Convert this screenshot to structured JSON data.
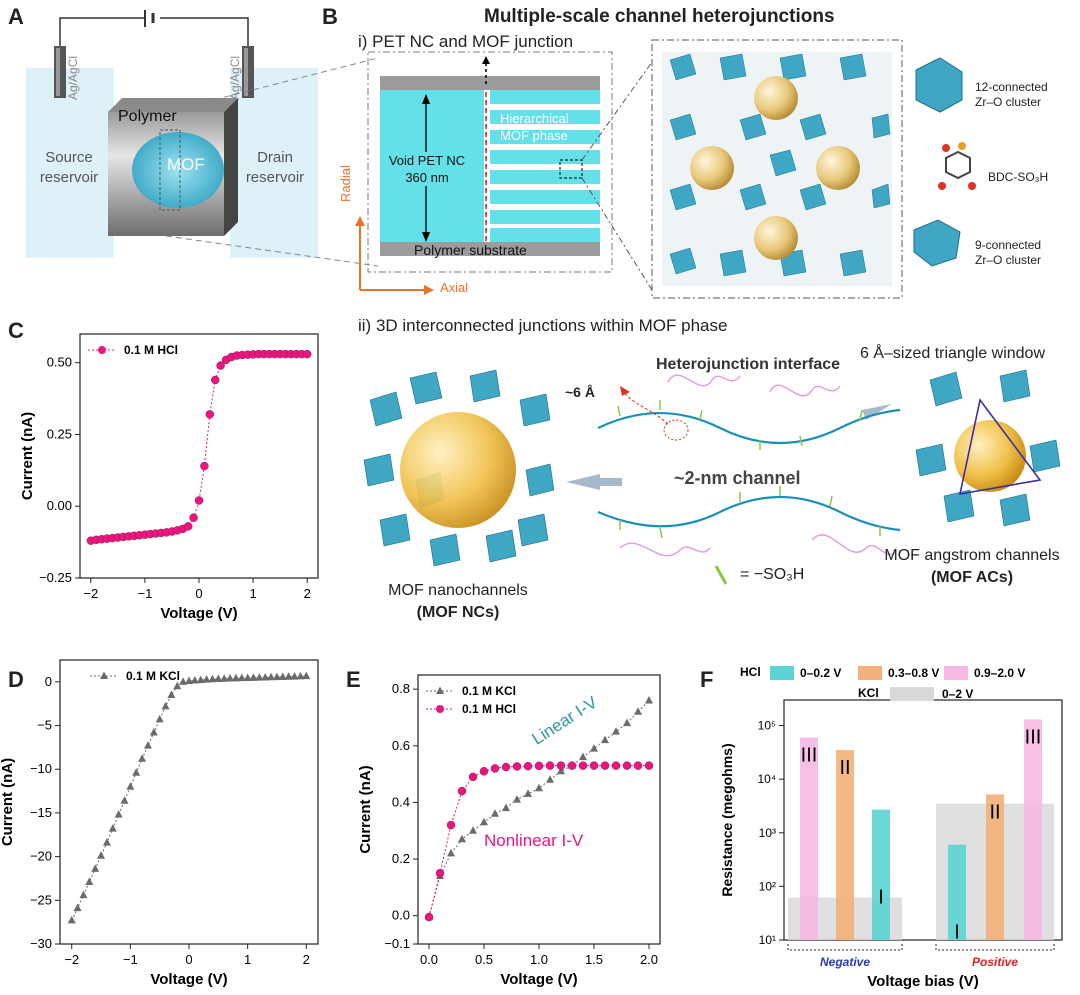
{
  "panel_labels": {
    "A": "A",
    "B": "B",
    "C": "C",
    "D": "D",
    "E": "E",
    "F": "F"
  },
  "panel_A": {
    "electrode_left": "Ag/AgCl",
    "electrode_right": "Ag/AgCl",
    "polymer": "Polymer",
    "mof": "MOF",
    "source_line1": "Source",
    "source_line2": "reservoir",
    "drain_line1": "Drain",
    "drain_line2": "reservoir"
  },
  "panel_B": {
    "title": "Multiple-scale channel heterojunctions",
    "sub_i": "i)  PET NC and MOF junction",
    "hier_line1": "Hierarchical",
    "hier_line2": "MOF phase",
    "void_line1": "Void PET NC",
    "void_line2": "360 nm",
    "polymer_substrate": "Polymer substrate",
    "radial": "Radial",
    "axial": "Axial",
    "cluster12_line1": "12-connected",
    "cluster12_line2": "Zr–O cluster",
    "bdc": "BDC-SO₃H",
    "cluster9_line1": "9-connected",
    "cluster9_line2": "Zr–O cluster",
    "sub_ii": "ii)  3D interconnected junctions within MOF phase",
    "hetero_interface": "Heterojunction interface",
    "six_a": "~6 Å",
    "triangle_window": "6 Å–sized triangle window",
    "two_nm": "~2-nm channel",
    "so3h": "= −SO₃H",
    "nc_line1": "MOF nanochannels",
    "nc_line2": "(MOF NCs)",
    "ac_line1": "MOF angstrom channels",
    "ac_line2": "(MOF ACs)"
  },
  "colors": {
    "hcl": "#e8177e",
    "kcl": "#6b6b6b",
    "mof": "#3fa7c4",
    "cyan": "#63e0e8",
    "orange": "#f0a868",
    "pink": "#f5b4e0",
    "gray": "#d9d9d9"
  },
  "chart_data": [
    {
      "id": "C",
      "type": "line",
      "xlabel": "Voltage (V)",
      "ylabel": "Current (nA)",
      "xlim": [
        -2.2,
        2.2
      ],
      "ylim": [
        -0.25,
        0.6
      ],
      "xticks": [
        -2,
        -1,
        0,
        1,
        2
      ],
      "yticks": [
        -0.25,
        0.0,
        0.25,
        0.5
      ],
      "ytick_labels": [
        "−0.25",
        "0.00",
        "0.25",
        "0.50"
      ],
      "xtick_labels": [
        "−2",
        "−1",
        "0",
        "1",
        "2"
      ],
      "series": [
        {
          "name": "0.1 M HCl",
          "x": [
            -2.0,
            -1.9,
            -1.8,
            -1.7,
            -1.6,
            -1.5,
            -1.4,
            -1.3,
            -1.2,
            -1.1,
            -1.0,
            -0.9,
            -0.8,
            -0.7,
            -0.6,
            -0.5,
            -0.4,
            -0.3,
            -0.2,
            -0.1,
            0.0,
            0.1,
            0.2,
            0.3,
            0.4,
            0.5,
            0.6,
            0.7,
            0.8,
            0.9,
            1.0,
            1.1,
            1.2,
            1.3,
            1.4,
            1.5,
            1.6,
            1.7,
            1.8,
            1.9,
            2.0
          ],
          "y": [
            -0.12,
            -0.117,
            -0.115,
            -0.113,
            -0.111,
            -0.109,
            -0.107,
            -0.105,
            -0.103,
            -0.101,
            -0.099,
            -0.097,
            -0.095,
            -0.093,
            -0.091,
            -0.088,
            -0.084,
            -0.079,
            -0.07,
            -0.04,
            0.02,
            0.14,
            0.32,
            0.44,
            0.49,
            0.51,
            0.52,
            0.525,
            0.527,
            0.528,
            0.529,
            0.53,
            0.53,
            0.53,
            0.53,
            0.53,
            0.53,
            0.53,
            0.53,
            0.53,
            0.53
          ]
        }
      ]
    },
    {
      "id": "D",
      "type": "line",
      "xlabel": "Voltage (V)",
      "ylabel": "Current (nA)",
      "xlim": [
        -2.2,
        2.2
      ],
      "ylim": [
        -30,
        2.5
      ],
      "xticks": [
        -2,
        -1,
        0,
        1,
        2
      ],
      "xtick_labels": [
        "−2",
        "−1",
        "0",
        "1",
        "2"
      ],
      "yticks": [
        0,
        -5,
        -10,
        -15,
        -20,
        -25,
        -30
      ],
      "ytick_labels": [
        "0",
        "−5",
        "−10",
        "−15",
        "−20",
        "−25",
        "−30"
      ],
      "series": [
        {
          "name": "0.1 M KCl",
          "x": [
            -2.0,
            -1.9,
            -1.8,
            -1.7,
            -1.6,
            -1.5,
            -1.4,
            -1.3,
            -1.2,
            -1.1,
            -1.0,
            -0.9,
            -0.8,
            -0.7,
            -0.6,
            -0.5,
            -0.4,
            -0.3,
            -0.2,
            -0.1,
            0.0,
            0.1,
            0.2,
            0.3,
            0.4,
            0.5,
            0.6,
            0.7,
            0.8,
            0.9,
            1.0,
            1.1,
            1.2,
            1.3,
            1.4,
            1.5,
            1.6,
            1.7,
            1.8,
            1.9,
            2.0
          ],
          "y": [
            -27.3,
            -25.9,
            -24.4,
            -22.9,
            -21.4,
            -19.9,
            -18.4,
            -16.8,
            -15.2,
            -13.6,
            -12.0,
            -10.4,
            -8.8,
            -7.3,
            -5.8,
            -4.3,
            -2.8,
            -1.5,
            -0.5,
            0.0,
            0.1,
            0.15,
            0.2,
            0.25,
            0.3,
            0.32,
            0.35,
            0.38,
            0.4,
            0.42,
            0.44,
            0.46,
            0.48,
            0.5,
            0.52,
            0.54,
            0.56,
            0.58,
            0.6,
            0.62,
            0.65
          ]
        }
      ]
    },
    {
      "id": "E",
      "type": "line",
      "xlabel": "Voltage (V)",
      "ylabel": "Current (nA)",
      "xlim": [
        -0.1,
        2.1
      ],
      "ylim": [
        -0.1,
        0.85
      ],
      "xticks": [
        0.0,
        0.5,
        1.0,
        1.5,
        2.0
      ],
      "xtick_labels": [
        "0.0",
        "0.5",
        "1.0",
        "1.5",
        "2.0"
      ],
      "yticks": [
        -0.1,
        0.0,
        0.2,
        0.4,
        0.6,
        0.8
      ],
      "ytick_labels": [
        "−0.1",
        "0.0",
        "0.2",
        "0.4",
        "0.6",
        "0.8"
      ],
      "annotations": [
        "Linear I-V",
        "Nonlinear I-V"
      ],
      "series": [
        {
          "name": "0.1 M KCl",
          "x": [
            0.0,
            0.1,
            0.2,
            0.3,
            0.4,
            0.5,
            0.6,
            0.7,
            0.8,
            0.9,
            1.0,
            1.1,
            1.2,
            1.3,
            1.4,
            1.5,
            1.6,
            1.7,
            1.8,
            1.9,
            2.0
          ],
          "y": [
            -0.005,
            0.14,
            0.22,
            0.27,
            0.3,
            0.33,
            0.36,
            0.38,
            0.41,
            0.43,
            0.45,
            0.48,
            0.51,
            0.53,
            0.56,
            0.59,
            0.62,
            0.65,
            0.68,
            0.72,
            0.76
          ]
        },
        {
          "name": "0.1 M HCl",
          "x": [
            0.0,
            0.1,
            0.2,
            0.3,
            0.4,
            0.5,
            0.6,
            0.7,
            0.8,
            0.9,
            1.0,
            1.1,
            1.2,
            1.3,
            1.4,
            1.5,
            1.6,
            1.7,
            1.8,
            1.9,
            2.0
          ],
          "y": [
            -0.005,
            0.15,
            0.32,
            0.44,
            0.49,
            0.51,
            0.52,
            0.525,
            0.527,
            0.528,
            0.529,
            0.53,
            0.53,
            0.53,
            0.53,
            0.53,
            0.53,
            0.53,
            0.53,
            0.53,
            0.53
          ]
        }
      ]
    },
    {
      "id": "F",
      "type": "bar",
      "xlabel": "Voltage bias (V)",
      "ylabel": "Resistance (megohms)",
      "yscale": "log",
      "ylim": [
        10,
        300000
      ],
      "yticks": [
        10,
        100,
        1000,
        10000,
        100000
      ],
      "ytick_labels": [
        "10¹",
        "10²",
        "10³",
        "10⁴",
        "10⁵"
      ],
      "groups": [
        "Negative",
        "Positive"
      ],
      "legend": {
        "hcl_label": "HCl",
        "kcl_label": "KCl",
        "items": [
          {
            "name": "0–0.2 V",
            "color": "#5cd3d3"
          },
          {
            "name": "0.3–0.8 V",
            "color": "#f3b07a"
          },
          {
            "name": "0.9–2.0 V",
            "color": "#f5b9e3"
          },
          {
            "name": "0–2 V",
            "color": "#d9d9d9"
          }
        ]
      },
      "bars": [
        {
          "group": "Negative",
          "range": "0.9–2.0 V",
          "value": 60000,
          "label": "III"
        },
        {
          "group": "Negative",
          "range": "0.3–0.8 V",
          "value": 35000,
          "label": "II"
        },
        {
          "group": "Negative",
          "range": "0–0.2 V",
          "value": 2700,
          "label": "I"
        },
        {
          "group": "Positive",
          "range": "0–0.2 V",
          "value": 600,
          "label": "I"
        },
        {
          "group": "Positive",
          "range": "0.3–0.8 V",
          "value": 5200,
          "label": "II"
        },
        {
          "group": "Positive",
          "range": "0.9–2.0 V",
          "value": 130000,
          "label": "III"
        }
      ],
      "kcl_background": [
        {
          "group": "Negative",
          "range": "0–2 V",
          "value": 62
        },
        {
          "group": "Positive",
          "range": "0–2 V",
          "value": 3500
        }
      ]
    }
  ]
}
